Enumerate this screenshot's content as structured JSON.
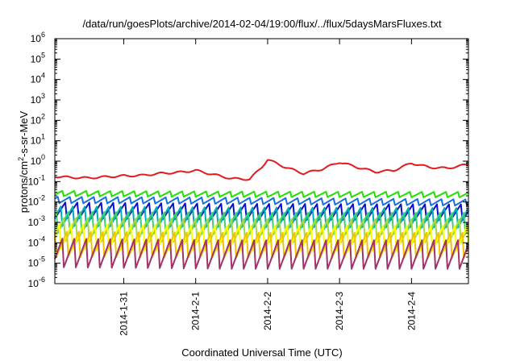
{
  "chart_data": {
    "type": "line",
    "title": "/data/run/goesPlots/archive/2014-02-04/19:00/flux/../flux/5daysMarsFluxes.txt",
    "xlabel": "Coordinated Universal Time (UTC)",
    "ylabel_main": "protons/cm",
    "ylabel_sup": "2",
    "ylabel_tail": "-s-sr-MeV",
    "xlim": [
      "2014-01-30 01:00",
      "2014-02-04 19:00"
    ],
    "ylim": [
      1e-06,
      1000000.0
    ],
    "yscale": "log",
    "grid": false,
    "x_ticks": [
      {
        "date": "2014-01-31 00:00",
        "label": "2014-1-31"
      },
      {
        "date": "2014-02-01 00:00",
        "label": "2014-2-1"
      },
      {
        "date": "2014-02-02 00:00",
        "label": "2014-2-2"
      },
      {
        "date": "2014-02-03 00:00",
        "label": "2014-2-3"
      },
      {
        "date": "2014-02-04 00:00",
        "label": "2014-2-4"
      }
    ],
    "y_ticks": [
      {
        "value": 1e-06,
        "base": "10",
        "exp": "-6"
      },
      {
        "value": 1e-05,
        "base": "10",
        "exp": "-5"
      },
      {
        "value": 0.0001,
        "base": "10",
        "exp": "-4"
      },
      {
        "value": 0.001,
        "base": "10",
        "exp": "-3"
      },
      {
        "value": 0.01,
        "base": "10",
        "exp": "-2"
      },
      {
        "value": 0.1,
        "base": "10",
        "exp": "-1"
      },
      {
        "value": 1,
        "base": "10",
        "exp": "0"
      },
      {
        "value": 10,
        "base": "10",
        "exp": "1"
      },
      {
        "value": 100,
        "base": "10",
        "exp": "2"
      },
      {
        "value": 1000,
        "base": "10",
        "exp": "3"
      },
      {
        "value": 10000,
        "base": "10",
        "exp": "4"
      },
      {
        "value": 100000,
        "base": "10",
        "exp": "5"
      },
      {
        "value": 1000000,
        "base": "10",
        "exp": "6"
      }
    ],
    "series": [
      {
        "color": "#e41a1c",
        "x": [
          "2014-01-30 01:00",
          "2014-01-30 06:00",
          "2014-01-30 12:00",
          "2014-01-30 18:00",
          "2014-01-31 00:00",
          "2014-01-31 06:00",
          "2014-01-31 12:00",
          "2014-01-31 18:00",
          "2014-02-01 00:00",
          "2014-02-01 06:00",
          "2014-02-01 12:00",
          "2014-02-01 18:00",
          "2014-02-01 22:00",
          "2014-02-02 00:00",
          "2014-02-02 06:00",
          "2014-02-02 12:00",
          "2014-02-02 18:00",
          "2014-02-03 00:00",
          "2014-02-03 06:00",
          "2014-02-03 12:00",
          "2014-02-03 18:00",
          "2014-02-04 00:00",
          "2014-02-04 06:00",
          "2014-02-04 12:00",
          "2014-02-04 19:00"
        ],
        "y": [
          0.18,
          0.16,
          0.15,
          0.17,
          0.19,
          0.2,
          0.25,
          0.28,
          0.35,
          0.22,
          0.14,
          0.13,
          0.5,
          1.2,
          0.5,
          0.25,
          0.4,
          0.9,
          0.5,
          0.3,
          0.35,
          0.8,
          0.5,
          0.45,
          0.7
        ]
      },
      {
        "color": "#22e000",
        "x": [
          "2014-01-30 01:00",
          "2014-02-01 12:00",
          "2014-02-04 19:00"
        ],
        "y": [
          0.025,
          0.023,
          0.022
        ],
        "saw": 0.3
      },
      {
        "color": "#1a6fe0",
        "x": [
          "2014-01-30 01:00",
          "2014-02-01 12:00",
          "2014-02-04 19:00"
        ],
        "y": [
          0.012,
          0.011,
          0.009
        ],
        "saw": 0.35
      },
      {
        "color": "#0a10c8",
        "x": [
          "2014-01-30 01:00",
          "2014-02-01 12:00",
          "2014-02-04 19:00"
        ],
        "y": [
          0.0035,
          0.003,
          0.0028
        ],
        "saw": 0.9
      },
      {
        "color": "#00b0b0",
        "x": [
          "2014-01-30 01:00",
          "2014-02-01 12:00",
          "2014-02-04 19:00"
        ],
        "y": [
          0.0018,
          0.0016,
          0.0015
        ],
        "saw": 1.1
      },
      {
        "color": "#3fd070",
        "x": [
          "2014-01-30 01:00",
          "2014-02-01 12:00",
          "2014-02-04 19:00"
        ],
        "y": [
          0.0009,
          0.0008,
          0.0008
        ],
        "saw": 1.2
      },
      {
        "color": "#a6d84a",
        "x": [
          "2014-01-30 01:00",
          "2014-02-01 12:00",
          "2014-02-04 19:00"
        ],
        "y": [
          0.0004,
          0.00035,
          0.00035
        ],
        "saw": 1.3
      },
      {
        "color": "#ffff00",
        "x": [
          "2014-01-30 01:00",
          "2014-02-01 12:00",
          "2014-02-04 19:00"
        ],
        "y": [
          0.00018,
          0.00015,
          0.00015
        ],
        "saw": 1.4
      },
      {
        "color": "#f2c400",
        "x": [
          "2014-01-30 01:00",
          "2014-02-01 12:00",
          "2014-02-04 19:00"
        ],
        "y": [
          8e-05,
          7e-05,
          7e-05
        ],
        "saw": 1.4
      },
      {
        "color": "#a0336a",
        "x": [
          "2014-01-30 01:00",
          "2014-02-01 12:00",
          "2014-02-04 19:00"
        ],
        "y": [
          3e-05,
          2.5e-05,
          2.5e-05
        ],
        "saw": 1.6
      }
    ]
  }
}
